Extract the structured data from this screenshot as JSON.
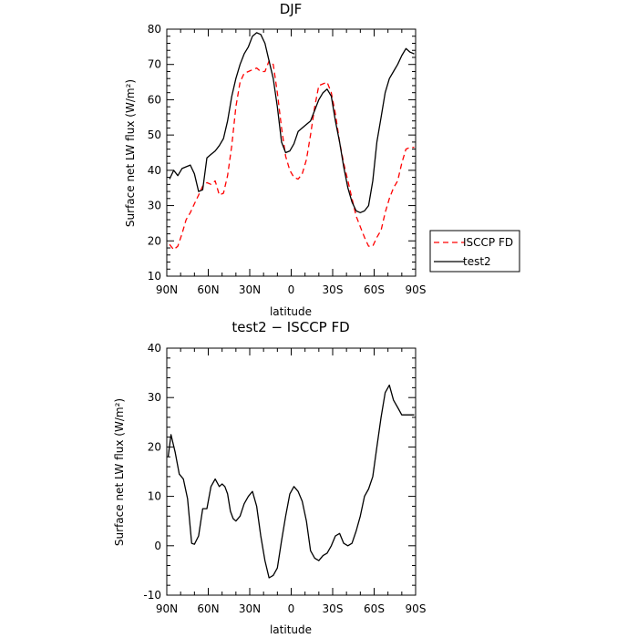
{
  "chart_data": [
    {
      "type": "line",
      "title": "DJF",
      "xlabel": "latitude",
      "ylabel": "Surface net LW flux (W/m²)",
      "xticks": [
        "90N",
        "60N",
        "30N",
        "0",
        "30S",
        "60S",
        "90S"
      ],
      "ylim": [
        10,
        80
      ],
      "yticks": [
        10,
        20,
        30,
        40,
        50,
        60,
        70,
        80
      ],
      "legend": {
        "position": "right"
      },
      "series": [
        {
          "name": "ISCCP FD",
          "color": "#ff0000",
          "dash": "dashed",
          "x": [
            -88,
            -85,
            -82,
            -79,
            -76,
            -73,
            -70,
            -67,
            -64,
            -61,
            -58,
            -55,
            -52,
            -49,
            -46,
            -43,
            -40,
            -37,
            -34,
            -31,
            -28,
            -25,
            -22,
            -19,
            -16,
            -13,
            -10,
            -7,
            -4,
            -1,
            2,
            5,
            8,
            11,
            14,
            17,
            20,
            23,
            26,
            29,
            32,
            35,
            38,
            41,
            44,
            47,
            50,
            53,
            56,
            59,
            62,
            65,
            68,
            71,
            74,
            77,
            80,
            83,
            86,
            89
          ],
          "values": [
            19,
            17.5,
            18.5,
            22,
            26,
            28,
            30.5,
            33,
            35.5,
            36.5,
            36,
            37,
            33,
            33.5,
            38.5,
            47,
            58,
            65,
            67.5,
            68,
            68.5,
            69,
            68,
            68,
            71,
            70,
            62,
            52,
            44,
            40,
            38,
            37.5,
            39,
            43,
            50,
            58,
            64,
            64.5,
            65,
            62,
            56,
            48,
            42,
            37,
            32,
            27,
            24,
            21,
            18.5,
            18.5,
            21,
            23,
            28,
            32,
            35,
            37,
            42,
            46,
            46.5,
            46.5
          ]
        },
        {
          "name": "test2",
          "color": "#000000",
          "dash": "solid",
          "x": [
            -88,
            -85,
            -82,
            -79,
            -76,
            -73,
            -70,
            -67,
            -64,
            -61,
            -58,
            -55,
            -52,
            -49,
            -46,
            -43,
            -40,
            -37,
            -34,
            -31,
            -28,
            -25,
            -22,
            -19,
            -16,
            -13,
            -10,
            -7,
            -4,
            -1,
            2,
            5,
            8,
            11,
            14,
            17,
            20,
            23,
            26,
            29,
            32,
            35,
            38,
            41,
            44,
            47,
            50,
            53,
            56,
            59,
            62,
            65,
            68,
            71,
            74,
            77,
            80,
            83,
            86,
            89
          ],
          "values": [
            37.5,
            40,
            38.5,
            40.5,
            41,
            41.5,
            39,
            34,
            34.5,
            43.5,
            44.5,
            45.5,
            47,
            49,
            54,
            61,
            66,
            70,
            73,
            75,
            78,
            79,
            78.5,
            76,
            71,
            66,
            58,
            48,
            45,
            45.5,
            47.5,
            51,
            52,
            53,
            54,
            57,
            60,
            62,
            63,
            61,
            54,
            48,
            41,
            35,
            31,
            28.5,
            28,
            28.5,
            30,
            37,
            48,
            55,
            62,
            66,
            68,
            70,
            72.5,
            74.5,
            73.5,
            73
          ]
        }
      ]
    },
    {
      "type": "line",
      "title": "test2 − ISCCP FD",
      "xlabel": "latitude",
      "ylabel": "Surface net LW flux (W/m²)",
      "xticks": [
        "90N",
        "60N",
        "30N",
        "0",
        "30S",
        "60S",
        "90S"
      ],
      "ylim": [
        -10,
        40
      ],
      "yticks": [
        -10,
        0,
        10,
        20,
        30,
        40
      ],
      "series": [
        {
          "color": "#000000",
          "dash": "solid",
          "x": [
            -89,
            -87,
            -84,
            -81,
            -78,
            -75,
            -72,
            -70,
            -67,
            -64,
            -61,
            -58,
            -55,
            -52,
            -50,
            -48,
            -46,
            -44,
            -42,
            -40,
            -37,
            -34,
            -31,
            -28,
            -25,
            -22,
            -19,
            -16,
            -13,
            -10,
            -7,
            -4,
            -1,
            2,
            5,
            8,
            11,
            14,
            17,
            20,
            23,
            26,
            29,
            32,
            35,
            38,
            41,
            44,
            47,
            50,
            53,
            56,
            59,
            62,
            65,
            68,
            71,
            74,
            77,
            80,
            83,
            86,
            89
          ],
          "values": [
            18,
            22.5,
            19,
            14.5,
            13.5,
            9.5,
            0.5,
            0.3,
            2,
            7.5,
            7.5,
            12,
            13.5,
            12,
            12.5,
            12,
            10.5,
            7,
            5.5,
            5,
            6,
            8.5,
            10,
            11,
            8,
            2,
            -3,
            -6.5,
            -6,
            -4.5,
            1,
            6,
            10.5,
            12,
            11,
            9,
            5,
            -1,
            -2.5,
            -3,
            -2,
            -1.5,
            0,
            2,
            2.5,
            0.5,
            0,
            0.5,
            3,
            6,
            10,
            11.5,
            14,
            20,
            26,
            31,
            32.5,
            29.5,
            28,
            26.5,
            26.5,
            26.5,
            26.5
          ]
        }
      ]
    }
  ]
}
